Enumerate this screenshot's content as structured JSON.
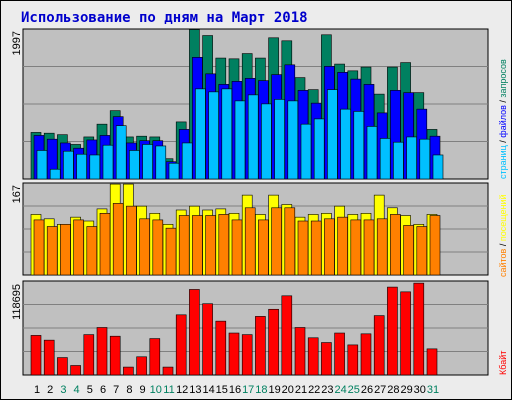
{
  "chart_data": [
    {
      "type": "bar",
      "title": "Использование по дням на Март 2018",
      "categories": [
        "1",
        "2",
        "3",
        "4",
        "5",
        "6",
        "7",
        "8",
        "9",
        "10",
        "11",
        "12",
        "13",
        "14",
        "15",
        "16",
        "17",
        "18",
        "19",
        "20",
        "21",
        "22",
        "23",
        "24",
        "25",
        "26",
        "27",
        "28",
        "29",
        "30",
        "31"
      ],
      "weekend_days": [
        "3",
        "4",
        "10",
        "11",
        "17",
        "18",
        "24",
        "25",
        "31"
      ],
      "ymax_label": "1997",
      "ylim": [
        0,
        1997
      ],
      "series": [
        {
          "name": "запросов",
          "color": "#008060",
          "values": [
            620,
            610,
            590,
            460,
            560,
            730,
            910,
            560,
            570,
            560,
            270,
            760,
            1990,
            1910,
            1610,
            1600,
            1670,
            1610,
            1880,
            1840,
            1350,
            1190,
            1920,
            1530,
            1440,
            1490,
            1130,
            1490,
            1550,
            1150,
            660
          ]
        },
        {
          "name": "файлов",
          "color": "#0000ff",
          "values": [
            580,
            530,
            480,
            410,
            520,
            580,
            830,
            480,
            510,
            510,
            230,
            660,
            1620,
            1400,
            1260,
            1300,
            1340,
            1310,
            1390,
            1520,
            1180,
            1010,
            1500,
            1420,
            1330,
            1260,
            880,
            1180,
            1150,
            930,
            570
          ]
        },
        {
          "name": "страниц",
          "color": "#00c0ff",
          "values": [
            380,
            130,
            370,
            330,
            320,
            450,
            710,
            380,
            460,
            440,
            210,
            480,
            1200,
            1160,
            1200,
            1040,
            1120,
            1000,
            1060,
            1040,
            730,
            800,
            1190,
            930,
            900,
            700,
            540,
            490,
            560,
            530,
            320
          ]
        }
      ]
    },
    {
      "type": "bar",
      "categories": [
        "1",
        "2",
        "3",
        "4",
        "5",
        "6",
        "7",
        "8",
        "9",
        "10",
        "11",
        "12",
        "13",
        "14",
        "15",
        "16",
        "17",
        "18",
        "19",
        "20",
        "21",
        "22",
        "23",
        "24",
        "25",
        "26",
        "27",
        "28",
        "29",
        "30",
        "31"
      ],
      "ymax_label": "167",
      "ylim": [
        0,
        167
      ],
      "series": [
        {
          "name": "посещений",
          "color": "#ffff00",
          "values": [
            110,
            102,
            92,
            105,
            98,
            120,
            165,
            165,
            125,
            112,
            92,
            118,
            125,
            118,
            120,
            112,
            145,
            110,
            145,
            128,
            105,
            110,
            112,
            125,
            110,
            112,
            145,
            122,
            108,
            92,
            110
          ]
        },
        {
          "name": "сайтов",
          "color": "#ff8000",
          "values": [
            100,
            88,
            92,
            100,
            88,
            112,
            130,
            125,
            102,
            100,
            85,
            108,
            108,
            108,
            110,
            100,
            122,
            100,
            122,
            122,
            98,
            98,
            102,
            105,
            100,
            100,
            102,
            110,
            90,
            88,
            108
          ]
        }
      ]
    },
    {
      "type": "bar",
      "categories": [
        "1",
        "2",
        "3",
        "4",
        "5",
        "6",
        "7",
        "8",
        "9",
        "10",
        "11",
        "12",
        "13",
        "14",
        "15",
        "16",
        "17",
        "18",
        "19",
        "20",
        "21",
        "22",
        "23",
        "24",
        "25",
        "26",
        "27",
        "28",
        "29",
        "30",
        "31"
      ],
      "ymax_label": "118695",
      "ylim": [
        0,
        118695
      ],
      "series": [
        {
          "name": "Кбайт",
          "color": "#ff0000",
          "values": [
            50000,
            44000,
            22000,
            12000,
            51000,
            60000,
            49000,
            10000,
            23000,
            46000,
            10000,
            76000,
            108000,
            90000,
            68000,
            53000,
            51000,
            74000,
            83000,
            100000,
            60000,
            47000,
            41000,
            53000,
            38000,
            52000,
            75000,
            111000,
            105000,
            116000,
            33000
          ]
        }
      ]
    }
  ],
  "colors": {
    "background": "#ececec",
    "plot_bg": "#c0c0c0",
    "grid": "#808080",
    "title": "#0000cc",
    "weekday": "#000000",
    "weekend": "#008060",
    "legend_sep": "#000000"
  },
  "legend": {
    "sep": "/"
  }
}
